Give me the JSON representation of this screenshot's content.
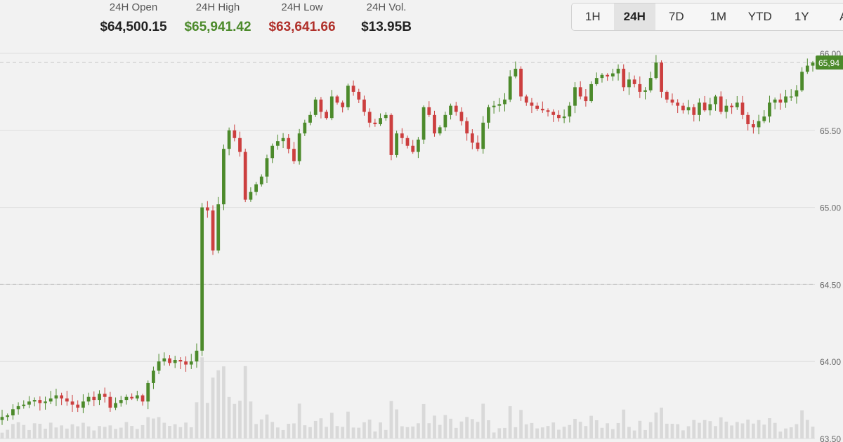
{
  "stats": [
    {
      "label": "24H Open",
      "value": "$64,500.15",
      "color": "#222222"
    },
    {
      "label": "24H High",
      "value": "$65,941.42",
      "color": "#4c8a2b"
    },
    {
      "label": "24H Low",
      "value": "$63,641.66",
      "color": "#b0302a"
    },
    {
      "label": "24H Vol.",
      "value": "$13.95B",
      "color": "#222222"
    }
  ],
  "ranges": [
    "1H",
    "24H",
    "7D",
    "1M",
    "YTD",
    "1Y",
    "A"
  ],
  "active_range": "24H",
  "colors": {
    "up": "#4c8a2b",
    "down": "#cc3f3f",
    "volume": "#d9d9d9",
    "grid": "#dedede",
    "reference": "#c8c8c8"
  },
  "chart_data": {
    "type": "candlestick",
    "x_labels": [],
    "y_ticks": [
      "66.00",
      "65.50",
      "65.00",
      "64.50",
      "64.00",
      "63.50"
    ],
    "y_tick_values": [
      66.0,
      65.5,
      65.0,
      64.5,
      64.0,
      63.5
    ],
    "ylim": [
      63.5,
      66.0
    ],
    "last_price_label": "65,94",
    "last_price": 65.94,
    "high_reference": 65.94,
    "open_reference": 64.5,
    "grid": true,
    "close": [
      63.64,
      63.65,
      63.69,
      63.71,
      63.72,
      63.74,
      63.75,
      63.73,
      63.74,
      63.76,
      63.78,
      63.76,
      63.74,
      63.72,
      63.7,
      63.74,
      63.77,
      63.75,
      63.79,
      63.77,
      63.7,
      63.73,
      63.75,
      63.77,
      63.76,
      63.78,
      63.74,
      63.86,
      63.94,
      64.0,
      64.02,
      63.99,
      64.01,
      64.0,
      63.98,
      64.0,
      64.07,
      65.0,
      64.98,
      64.72,
      65.02,
      65.38,
      65.5,
      65.45,
      65.36,
      65.05,
      65.1,
      65.15,
      65.2,
      65.32,
      65.4,
      65.43,
      65.45,
      65.38,
      65.3,
      65.48,
      65.55,
      65.6,
      65.7,
      65.62,
      65.58,
      65.72,
      65.68,
      65.65,
      65.79,
      65.75,
      65.7,
      65.62,
      65.55,
      65.54,
      65.58,
      65.6,
      65.34,
      65.48,
      65.45,
      65.4,
      65.36,
      65.44,
      65.65,
      65.6,
      65.48,
      65.52,
      65.6,
      65.66,
      65.62,
      65.56,
      65.48,
      65.42,
      65.38,
      65.55,
      65.65,
      65.66,
      65.67,
      65.7,
      65.85,
      65.9,
      65.72,
      65.68,
      65.66,
      65.64,
      65.63,
      65.62,
      65.6,
      65.58,
      65.59,
      65.66,
      65.78,
      65.72,
      65.69,
      65.8,
      65.84,
      65.86,
      65.85,
      65.87,
      65.9,
      65.78,
      65.83,
      65.8,
      65.75,
      65.76,
      65.84,
      65.94,
      65.75,
      65.7,
      65.68,
      65.66,
      65.63,
      65.65,
      65.6,
      65.68,
      65.63,
      65.67,
      65.72,
      65.62,
      65.66,
      65.65,
      65.68,
      65.6,
      65.54,
      65.52,
      65.56,
      65.59,
      65.68,
      65.7,
      65.68,
      65.72,
      65.72,
      65.76,
      65.88,
      65.92,
      65.94
    ]
  }
}
